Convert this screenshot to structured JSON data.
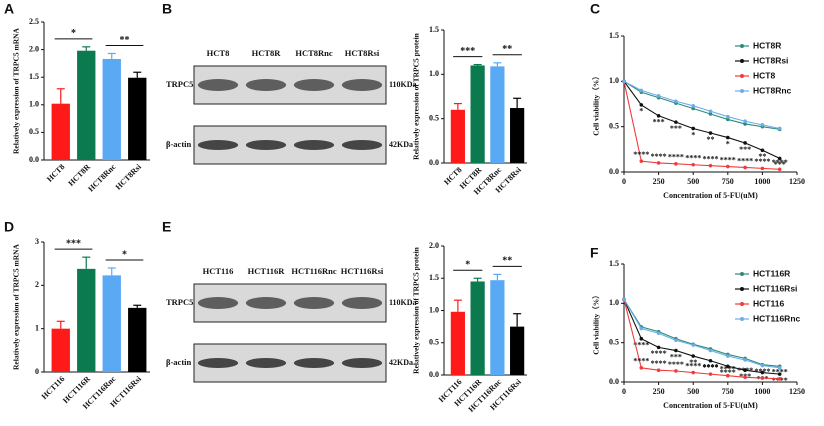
{
  "chart_data": [
    {
      "type": "bar",
      "panel": "A",
      "ylabel": "Relatively expression of TRPC5 mRNA",
      "categories": [
        "HCT8",
        "HCT8R",
        "HCT8Rnc",
        "HCT8Rsi"
      ],
      "values": [
        1.02,
        1.98,
        1.83,
        1.49
      ],
      "errors": [
        0.27,
        0.07,
        0.1,
        0.1
      ],
      "colors": [
        "#ff1a1a",
        "#0b7a4f",
        "#5aa9f5",
        "#000000"
      ],
      "significance": [
        null,
        "*",
        null,
        "**"
      ],
      "ylim": [
        0,
        2.5
      ],
      "yticks": [
        {
          "value": 0,
          "label": "0.0"
        },
        0.5,
        {
          "value": 1,
          "label": "1.0"
        },
        1.5,
        {
          "value": 2,
          "label": "2.0"
        },
        2.5
      ]
    },
    {
      "type": "bar",
      "panel": "B",
      "ylabel": "Relatively expression of TRPC5 protein",
      "categories": [
        "HCT8",
        "HCT8R",
        "HCT8Rnc",
        "HCT8Rsi"
      ],
      "values": [
        0.6,
        1.1,
        1.09,
        0.62
      ],
      "errors": [
        0.07,
        0.01,
        0.04,
        0.11
      ],
      "colors": [
        "#ff1a1a",
        "#0b7a4f",
        "#5aa9f5",
        "#000000"
      ],
      "significance": [
        null,
        "***",
        null,
        "**"
      ],
      "ylim": [
        0,
        1.5
      ],
      "yticks": [
        {
          "value": 0,
          "label": "0.0"
        },
        0.5,
        {
          "value": 1,
          "label": "1.0"
        },
        1.5
      ]
    },
    {
      "type": "line",
      "panel": "C",
      "ylabel": "Cell viability（%）",
      "xlabel": "Concentration of 5-FU(uM)",
      "legend": "upper right",
      "x": [
        0,
        125,
        250,
        375,
        500,
        625,
        750,
        875,
        1000,
        1125
      ],
      "series": [
        {
          "name": "HCT8R",
          "color": "#2e8b7a",
          "values": [
            1.0,
            0.88,
            0.82,
            0.76,
            0.7,
            0.64,
            0.58,
            0.53,
            0.5,
            0.47
          ],
          "significance": null
        },
        {
          "name": "HCT8Rsi",
          "color": "#111111",
          "values": [
            1.0,
            0.74,
            0.62,
            0.55,
            0.48,
            0.43,
            0.38,
            0.32,
            0.24,
            0.15
          ],
          "significance": [
            null,
            "*",
            "***",
            "***",
            "*",
            "**",
            "*",
            "***",
            "**",
            "***"
          ]
        },
        {
          "name": "HCT8",
          "color": "#f03c3c",
          "values": [
            1.0,
            0.12,
            0.1,
            0.09,
            0.08,
            0.07,
            0.06,
            0.05,
            0.04,
            0.03
          ],
          "significance": [
            null,
            "****",
            "****",
            "****",
            "****",
            "****",
            "****",
            "****",
            "****",
            "****"
          ]
        },
        {
          "name": "HCT8Rnc",
          "color": "#6aaee8",
          "values": [
            1.0,
            0.9,
            0.84,
            0.78,
            0.73,
            0.67,
            0.61,
            0.56,
            0.52,
            0.48
          ],
          "significance": null
        }
      ],
      "xlim": [
        0,
        1250
      ],
      "xticks": [
        0,
        250,
        500,
        750,
        1000,
        1250
      ],
      "ylim": [
        0,
        1.5
      ],
      "yticks": [
        {
          "value": 0,
          "label": "0.0"
        },
        0.5,
        {
          "value": 1,
          "label": "1.0"
        },
        1.5
      ]
    },
    {
      "type": "bar",
      "panel": "D",
      "ylabel": "Relatively expression of TRPC5 mRNA",
      "categories": [
        "HCT116",
        "HCT116R",
        "HCT116Rnc",
        "HCT116Rsi"
      ],
      "values": [
        1.0,
        2.38,
        2.23,
        1.48
      ],
      "errors": [
        0.17,
        0.27,
        0.17,
        0.06
      ],
      "colors": [
        "#ff1a1a",
        "#0b7a4f",
        "#5aa9f5",
        "#000000"
      ],
      "significance": [
        null,
        "***",
        null,
        "*"
      ],
      "ylim": [
        0,
        3
      ],
      "yticks": [
        0,
        1,
        2,
        3
      ]
    },
    {
      "type": "bar",
      "panel": "E",
      "ylabel": "Relatively expression of TRPC5 protein",
      "categories": [
        "HCT116",
        "HCT116R",
        "HCT116Rnc",
        "HCT116Rsi"
      ],
      "values": [
        0.98,
        1.45,
        1.47,
        0.75
      ],
      "errors": [
        0.18,
        0.05,
        0.09,
        0.2
      ],
      "colors": [
        "#ff1a1a",
        "#0b7a4f",
        "#5aa9f5",
        "#000000"
      ],
      "significance": [
        null,
        "*",
        null,
        "**"
      ],
      "ylim": [
        0,
        2
      ],
      "yticks": [
        {
          "value": 0,
          "label": "0.0"
        },
        0.5,
        {
          "value": 1,
          "label": "1.0"
        },
        1.5,
        {
          "value": 2,
          "label": "2.0"
        }
      ]
    },
    {
      "type": "line",
      "panel": "F",
      "ylabel": "Cell viability（%）",
      "xlabel": "Concentration of 5-FU(uM)",
      "legend": "upper right",
      "x": [
        0,
        125,
        250,
        375,
        500,
        625,
        750,
        875,
        1000,
        1125
      ],
      "series": [
        {
          "name": "HCT116R",
          "color": "#2e8b7a",
          "values": [
            1.05,
            0.7,
            0.64,
            0.55,
            0.48,
            0.42,
            0.35,
            0.3,
            0.22,
            0.2
          ],
          "significance": null
        },
        {
          "name": "HCT116Rsi",
          "color": "#111111",
          "values": [
            1.05,
            0.55,
            0.44,
            0.4,
            0.33,
            0.27,
            0.2,
            0.15,
            0.12,
            0.1
          ],
          "significance": [
            null,
            "****",
            "****",
            "***",
            "**",
            "****",
            "****",
            "***",
            "***",
            "****"
          ]
        },
        {
          "name": "HCT116",
          "color": "#f03c3c",
          "values": [
            1.05,
            0.18,
            0.15,
            0.14,
            0.12,
            0.1,
            0.08,
            0.06,
            0.05,
            0.04
          ],
          "significance": [
            null,
            "****",
            "****",
            "****",
            "****",
            "****",
            "****",
            "****",
            "****",
            "****"
          ]
        },
        {
          "name": "HCT116Rnc",
          "color": "#6aaee8",
          "values": [
            1.05,
            0.68,
            0.62,
            0.53,
            0.47,
            0.4,
            0.33,
            0.28,
            0.21,
            0.18
          ],
          "significance": null
        }
      ],
      "xlim": [
        0,
        1250
      ],
      "xticks": [
        0,
        250,
        500,
        750,
        1000,
        1250
      ],
      "ylim": [
        0,
        1.5
      ],
      "yticks": [
        {
          "value": 0,
          "label": "0.0"
        },
        0.5,
        {
          "value": 1,
          "label": "1.0"
        },
        1.5
      ]
    }
  ],
  "blots": [
    {
      "lanes": [
        "HCT8",
        "HCT8R",
        "HCT8Rnc",
        "HCT8Rsi"
      ],
      "rows": [
        {
          "name": "TRPC5",
          "size": "110KDa"
        },
        {
          "name": "β-actin",
          "size": "42KDa"
        }
      ]
    },
    {
      "lanes": [
        "HCT116",
        "HCT116R",
        "HCT116Rnc",
        "HCT116Rsi"
      ],
      "rows": [
        {
          "name": "TRPC5",
          "size": "110KDa"
        },
        {
          "name": "β-actin",
          "size": "42KDa"
        }
      ]
    }
  ]
}
